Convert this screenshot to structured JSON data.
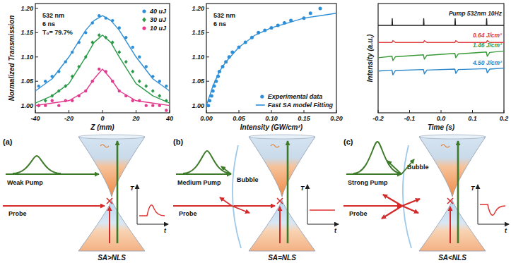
{
  "chart_data": [
    {
      "type": "scatter",
      "xlabel": "Z (mm)",
      "ylabel": "Normalized Transmission",
      "annotations": [
        "532 nm",
        "6 ns",
        "T₀= 79.7%"
      ],
      "xlim": [
        -40,
        40
      ],
      "ylim": [
        0.985,
        1.21
      ],
      "xticks": [
        -40,
        -20,
        0,
        20,
        40
      ],
      "yticks": [
        {
          "value": 1,
          "label": "1.00"
        },
        {
          "value": 1.05,
          "label": "1.05"
        },
        {
          "value": 1.1,
          "label": "1.10"
        },
        {
          "value": 1.15,
          "label": "1.15"
        },
        {
          "value": 1.2,
          "label": "1.20"
        }
      ],
      "grid": false,
      "legend": "upper right",
      "series": [
        {
          "name": "40 uJ",
          "color": "#2f8fd6",
          "marker": "circle",
          "x": [
            -38,
            -34,
            -30,
            -26,
            -22,
            -18,
            -14,
            -10,
            -6,
            -2,
            2,
            6,
            10,
            14,
            18,
            22,
            26,
            30,
            34,
            38
          ],
          "values": [
            1.04,
            1.05,
            1.06,
            1.07,
            1.09,
            1.11,
            1.13,
            1.15,
            1.17,
            1.185,
            1.18,
            1.175,
            1.16,
            1.14,
            1.12,
            1.1,
            1.08,
            1.06,
            1.05,
            1.04
          ]
        },
        {
          "name": "30 uJ",
          "color": "#2a9a48",
          "marker": "diamond",
          "x": [
            -38,
            -34,
            -30,
            -26,
            -22,
            -18,
            -14,
            -10,
            -6,
            -2,
            2,
            6,
            10,
            14,
            18,
            22,
            26,
            30,
            34,
            38
          ],
          "values": [
            1.0,
            1.01,
            1.02,
            1.03,
            1.04,
            1.06,
            1.08,
            1.1,
            1.13,
            1.145,
            1.14,
            1.13,
            1.11,
            1.09,
            1.07,
            1.05,
            1.04,
            1.03,
            1.02,
            1.01
          ]
        },
        {
          "name": "10 uJ",
          "color": "#e23a8e",
          "marker": "circle",
          "x": [
            -38,
            -34,
            -30,
            -26,
            -22,
            -18,
            -14,
            -10,
            -6,
            -2,
            2,
            6,
            10,
            14,
            18,
            22,
            26,
            30,
            34,
            38
          ],
          "values": [
            1.0,
            1.0,
            1.01,
            1.0,
            1.01,
            1.01,
            1.02,
            1.03,
            1.05,
            1.075,
            1.07,
            1.05,
            1.03,
            1.02,
            1.01,
            1.01,
            1.0,
            1.0,
            1.0,
            0.99
          ]
        },
        {
          "type": "line",
          "color": "#2f8fd6",
          "line_style": "solid",
          "x": [
            -40,
            -30,
            -20,
            -10,
            -5,
            0,
            5,
            10,
            20,
            30,
            40
          ],
          "values": [
            1.03,
            1.055,
            1.1,
            1.155,
            1.175,
            1.185,
            1.175,
            1.155,
            1.1,
            1.055,
            1.03
          ]
        },
        {
          "type": "line",
          "color": "#2a9a48",
          "line_style": "solid",
          "x": [
            -40,
            -30,
            -20,
            -10,
            -5,
            0,
            5,
            10,
            20,
            30,
            40
          ],
          "values": [
            1.005,
            1.02,
            1.045,
            1.1,
            1.13,
            1.145,
            1.13,
            1.1,
            1.045,
            1.02,
            1.005
          ]
        },
        {
          "type": "line",
          "color": "#e23a8e",
          "line_style": "solid",
          "x": [
            -40,
            -30,
            -20,
            -10,
            -5,
            0,
            5,
            10,
            20,
            30,
            40
          ],
          "values": [
            1.0,
            1.005,
            1.01,
            1.03,
            1.055,
            1.075,
            1.055,
            1.03,
            1.01,
            1.005,
            1.0
          ]
        }
      ]
    },
    {
      "type": "scatter",
      "xlabel": "Intensity (GW/cm²)",
      "annotations": [
        "532 nm",
        "6 ns"
      ],
      "xlim": [
        0,
        0.2
      ],
      "ylim": [
        0.985,
        1.21
      ],
      "xticks": [
        {
          "value": 0,
          "label": "0.00"
        },
        {
          "value": 0.05,
          "label": "0.05"
        },
        {
          "value": 0.1,
          "label": "0.10"
        },
        {
          "value": 0.15,
          "label": "0.15"
        },
        {
          "value": 0.2,
          "label": "0.20"
        }
      ],
      "yticks": [
        {
          "value": 1,
          "label": "1.00"
        },
        {
          "value": 1.05,
          "label": "1.05"
        },
        {
          "value": 1.1,
          "label": "1.10"
        },
        {
          "value": 1.15,
          "label": "1.15"
        },
        {
          "value": 1.2,
          "label": "1.20"
        }
      ],
      "grid": false,
      "legend": "lower right",
      "series": [
        {
          "name": "Experimental data",
          "color": "#2f8fd6",
          "marker": "circle",
          "x": [
            0.003,
            0.005,
            0.008,
            0.01,
            0.012,
            0.015,
            0.018,
            0.02,
            0.025,
            0.03,
            0.035,
            0.04,
            0.05,
            0.06,
            0.07,
            0.08,
            0.09,
            0.1,
            0.11,
            0.12,
            0.13,
            0.15,
            0.16,
            0.175
          ],
          "values": [
            1.0,
            1.01,
            1.02,
            1.03,
            1.04,
            1.05,
            1.06,
            1.07,
            1.08,
            1.09,
            1.1,
            1.11,
            1.12,
            1.13,
            1.14,
            1.15,
            1.155,
            1.16,
            1.165,
            1.17,
            1.175,
            1.18,
            1.19,
            1.2
          ]
        },
        {
          "name": "Fast SA model Fitting",
          "type": "line",
          "color": "#2f8fd6",
          "line_style": "solid",
          "x": [
            0,
            0.01,
            0.02,
            0.03,
            0.05,
            0.075,
            0.1,
            0.125,
            0.15,
            0.175,
            0.2
          ],
          "values": [
            1.0,
            1.04,
            1.07,
            1.09,
            1.12,
            1.145,
            1.16,
            1.17,
            1.18,
            1.185,
            1.19
          ]
        }
      ]
    },
    {
      "type": "line",
      "xlabel": "Time (s)",
      "ylabel": "Intensity (a.u.)",
      "xlim": [
        -0.2,
        0.2
      ],
      "ylim": [
        0,
        11.5
      ],
      "xticks": [
        -0.2,
        -0.1,
        {
          "value": 0,
          "label": "0.0"
        },
        0.1,
        0.2
      ],
      "tick_labels": "x",
      "grid": false,
      "series": [
        {
          "name": "Pump 532nm 10Hz",
          "color": "#222222",
          "line_style": "solid",
          "x": [
            -0.2,
            -0.156,
            -0.155,
            -0.154,
            -0.056,
            -0.055,
            -0.054,
            0.044,
            0.045,
            0.046,
            0.144,
            0.145,
            0.146,
            0.2
          ],
          "values": [
            9.2,
            9.2,
            9.9,
            9.2,
            9.2,
            9.9,
            9.2,
            9.2,
            9.9,
            9.2,
            9.2,
            9.9,
            9.2,
            9.2
          ]
        },
        {
          "name": "0.64 J/cm²",
          "color": "#e04040",
          "line_style": "solid",
          "x": [
            -0.2,
            -0.156,
            -0.153,
            -0.145,
            -0.056,
            -0.053,
            -0.045,
            0.044,
            0.047,
            0.055,
            0.144,
            0.147,
            0.155,
            0.2
          ],
          "values": [
            7.4,
            7.4,
            7.6,
            7.4,
            7.4,
            7.6,
            7.4,
            7.4,
            7.6,
            7.4,
            7.4,
            7.6,
            7.4,
            7.4
          ]
        },
        {
          "name": "1.46 J/cm²",
          "color": "#3a9a3a",
          "line_style": "solid",
          "x": [
            -0.2,
            -0.156,
            -0.153,
            -0.145,
            -0.056,
            -0.053,
            -0.045,
            0.044,
            0.047,
            0.055,
            0.144,
            0.147,
            0.155,
            0.2
          ],
          "values": [
            5.8,
            5.95,
            5.5,
            5.9,
            6.1,
            5.65,
            6.05,
            6.25,
            5.8,
            6.2,
            6.4,
            5.95,
            6.35,
            6.5
          ]
        },
        {
          "name": "4.50 J/cm²",
          "color": "#2a86c8",
          "line_style": "solid",
          "x": [
            -0.2,
            -0.156,
            -0.153,
            -0.145,
            -0.056,
            -0.053,
            -0.045,
            0.044,
            0.047,
            0.055,
            0.144,
            0.147,
            0.155,
            0.2
          ],
          "values": [
            4.4,
            4.5,
            4.0,
            4.45,
            4.55,
            4.1,
            4.5,
            4.6,
            4.15,
            4.55,
            4.65,
            4.2,
            4.6,
            4.7
          ]
        }
      ]
    }
  ],
  "diagrams": {
    "panels": [
      {
        "label": "(a)",
        "pump": "Weak Pump",
        "probe": "Probe",
        "axis_y": "T",
        "axis_x": "t",
        "caption": "SA>NLS"
      },
      {
        "label": "(b)",
        "pump": "Medium Pump",
        "bubble": "Bubble",
        "probe": "Probe",
        "axis_y": "T",
        "axis_x": "t",
        "caption": "SA=NLS"
      },
      {
        "label": "(c)",
        "pump": "Strong Pump",
        "bubble": "Bubble",
        "probe": "Probe",
        "axis_y": "T",
        "axis_x": "t",
        "caption": "SA<NLS"
      }
    ]
  }
}
